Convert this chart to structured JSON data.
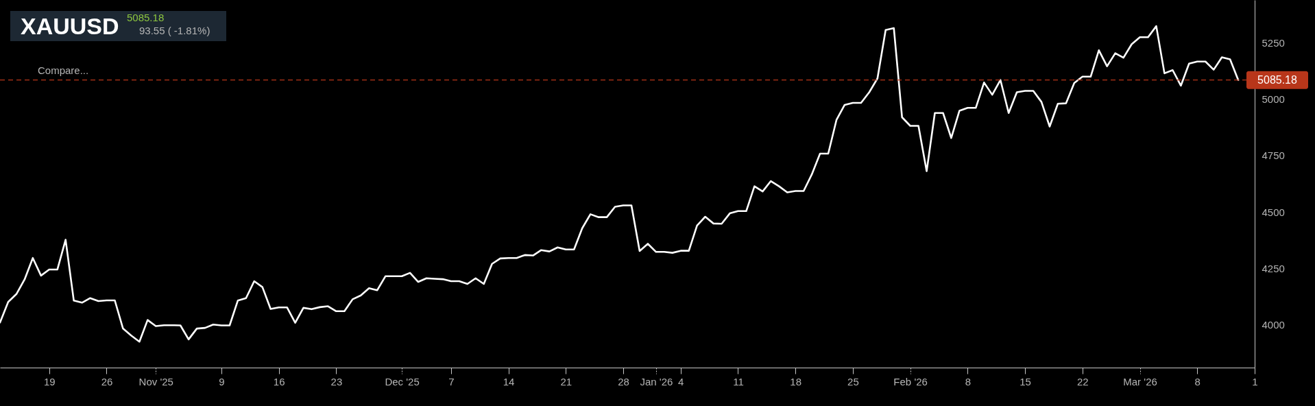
{
  "chart_data": {
    "type": "line",
    "title": "XAUUSD",
    "subtitle": "5085.18",
    "annotations": [
      "93.55 ( -1.81%)",
      "Compare..."
    ],
    "x": [
      "2025-10-13",
      "2025-10-14",
      "2025-10-15",
      "2025-10-16",
      "2025-10-17",
      "2025-10-18",
      "2025-10-19",
      "2025-10-20",
      "2025-10-21",
      "2025-10-22",
      "2025-10-23",
      "2025-10-24",
      "2025-10-25",
      "2025-10-26",
      "2025-10-27",
      "2025-10-28",
      "2025-10-29",
      "2025-10-30",
      "2025-10-31",
      "2025-11-01",
      "2025-11-02",
      "2025-11-03",
      "2025-11-04",
      "2025-11-05",
      "2025-11-06",
      "2025-11-07",
      "2025-11-08",
      "2025-11-09",
      "2025-11-10",
      "2025-11-11",
      "2025-11-12",
      "2025-11-13",
      "2025-11-14",
      "2025-11-15",
      "2025-11-16",
      "2025-11-17",
      "2025-11-18",
      "2025-11-19",
      "2025-11-20",
      "2025-11-21",
      "2025-11-22",
      "2025-11-23",
      "2025-11-24",
      "2025-11-25",
      "2025-11-26",
      "2025-11-27",
      "2025-11-28",
      "2025-11-29",
      "2025-11-30",
      "2025-12-01",
      "2025-12-02",
      "2025-12-03",
      "2025-12-04",
      "2025-12-05",
      "2025-12-06",
      "2025-12-07",
      "2025-12-08",
      "2025-12-09",
      "2025-12-10",
      "2025-12-11",
      "2025-12-12",
      "2025-12-13",
      "2025-12-14",
      "2025-12-15",
      "2025-12-16",
      "2025-12-17",
      "2025-12-18",
      "2025-12-19",
      "2025-12-20",
      "2025-12-21",
      "2025-12-22",
      "2025-12-23",
      "2025-12-24",
      "2025-12-25",
      "2025-12-26",
      "2025-12-27",
      "2025-12-28",
      "2025-12-29",
      "2025-12-30",
      "2025-12-31",
      "2026-01-01",
      "2026-01-02",
      "2026-01-03",
      "2026-01-04",
      "2026-01-05",
      "2026-01-06",
      "2026-01-07",
      "2026-01-08",
      "2026-01-09",
      "2026-01-10",
      "2026-01-11",
      "2026-01-12",
      "2026-01-13",
      "2026-01-14",
      "2026-01-15",
      "2026-01-16",
      "2026-01-17",
      "2026-01-18",
      "2026-01-19",
      "2026-01-20",
      "2026-01-21",
      "2026-01-22",
      "2026-01-23",
      "2026-01-24",
      "2026-01-25",
      "2026-01-26",
      "2026-01-27",
      "2026-01-28",
      "2026-01-29",
      "2026-01-30",
      "2026-01-31",
      "2026-02-01",
      "2026-02-02",
      "2026-02-03",
      "2026-02-04",
      "2026-02-05",
      "2026-02-06",
      "2026-02-07",
      "2026-02-08",
      "2026-02-09",
      "2026-02-10",
      "2026-02-11",
      "2026-02-12",
      "2026-02-13",
      "2026-02-14",
      "2026-02-15",
      "2026-02-16",
      "2026-02-17",
      "2026-02-18",
      "2026-02-19",
      "2026-02-20",
      "2026-02-21",
      "2026-02-22",
      "2026-02-23",
      "2026-02-24",
      "2026-02-25",
      "2026-02-26",
      "2026-02-27",
      "2026-02-28",
      "2026-03-01",
      "2026-03-02",
      "2026-03-03",
      "2026-03-04",
      "2026-03-05",
      "2026-03-06",
      "2026-03-07",
      "2026-03-08",
      "2026-03-09",
      "2026-03-10",
      "2026-03-11",
      "2026-03-12",
      "2026-03-13"
    ],
    "series": [
      {
        "color": "#ffffff",
        "values": [
          4010,
          4101,
          4136,
          4201,
          4296,
          4218,
          4245,
          4245,
          4377,
          4107,
          4098,
          4118,
          4105,
          4108,
          4108,
          3983,
          3952,
          3925,
          4021,
          3994,
          3998,
          3998,
          3997,
          3935,
          3983,
          3986,
          4001,
          3997,
          3997,
          4107,
          4118,
          4193,
          4167,
          4070,
          4077,
          4077,
          4009,
          4075,
          4069,
          4078,
          4082,
          4060,
          4060,
          4113,
          4130,
          4162,
          4153,
          4215,
          4215,
          4215,
          4230,
          4190,
          4206,
          4204,
          4202,
          4193,
          4193,
          4181,
          4206,
          4181,
          4270,
          4294,
          4296,
          4296,
          4309,
          4307,
          4331,
          4325,
          4343,
          4334,
          4334,
          4428,
          4490,
          4477,
          4477,
          4523,
          4529,
          4529,
          4327,
          4359,
          4323,
          4323,
          4319,
          4328,
          4328,
          4440,
          4479,
          4449,
          4448,
          4494,
          4504,
          4504,
          4614,
          4591,
          4637,
          4614,
          4587,
          4593,
          4593,
          4667,
          4759,
          4759,
          4908,
          4975,
          4984,
          4984,
          5031,
          5092,
          5307,
          5315,
          4920,
          4882,
          4882,
          4681,
          4939,
          4939,
          4828,
          4949,
          4962,
          4962,
          5074,
          5020,
          5085,
          4939,
          5031,
          5037,
          5037,
          4988,
          4879,
          4980,
          4982,
          5072,
          5100,
          5100,
          5217,
          5146,
          5204,
          5184,
          5244,
          5275,
          5275,
          5324,
          5115,
          5129,
          5060,
          5158,
          5167,
          5167,
          5131,
          5186,
          5177,
          5085
        ]
      }
    ],
    "xlim": [
      "2025-10-13",
      "2026-03-15"
    ],
    "ylim": [
      3810,
      5440
    ],
    "xticks": [
      {
        "value": "2025-10-19",
        "label": "19"
      },
      {
        "value": "2025-10-26",
        "label": "26"
      },
      {
        "value": "2025-11",
        "label": "Nov '25"
      },
      {
        "value": "2025-11-09",
        "label": "9"
      },
      {
        "value": "2025-11-16",
        "label": "16"
      },
      {
        "value": "2025-11-23",
        "label": "23"
      },
      {
        "value": "2025-12",
        "label": "Dec '25"
      },
      {
        "value": "2025-12-07",
        "label": "7"
      },
      {
        "value": "2025-12-14",
        "label": "14"
      },
      {
        "value": "2025-12-21",
        "label": "21"
      },
      {
        "value": "2025-12-28",
        "label": "28"
      },
      {
        "value": "2026-01",
        "label": "Jan '26"
      },
      {
        "value": "2026-01-04",
        "label": "4"
      },
      {
        "value": "2026-01-11",
        "label": "11"
      },
      {
        "value": "2026-01-18",
        "label": "18"
      },
      {
        "value": "2026-01-25",
        "label": "25"
      },
      {
        "value": "2026-02",
        "label": "Feb '26"
      },
      {
        "value": "2026-02-08",
        "label": "8"
      },
      {
        "value": "2026-02-15",
        "label": "15"
      },
      {
        "value": "2026-02-22",
        "label": "22"
      },
      {
        "value": "2026-03",
        "label": "Mar '26"
      },
      {
        "value": "2026-03-08",
        "label": "8"
      },
      {
        "value": "2026-03-15",
        "label": "1"
      }
    ],
    "yticks": [
      4000,
      4250,
      4500,
      4750,
      5000,
      5250
    ],
    "ref_lines": [
      {
        "axis": "y",
        "value": 5085.18,
        "label": "5085.18",
        "color": "#b8361a",
        "line_style": "dashed"
      }
    ],
    "marker": "none",
    "line_style": "solid"
  }
}
